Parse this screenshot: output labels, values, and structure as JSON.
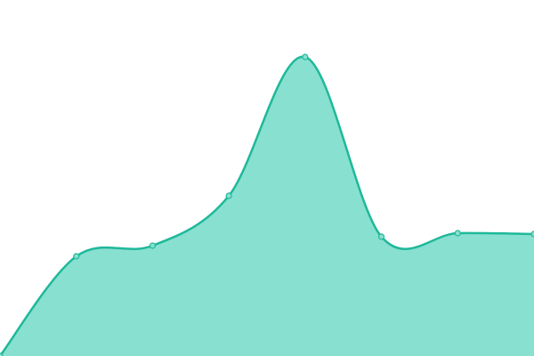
{
  "chart_data": {
    "type": "area",
    "categories": [
      null,
      null,
      null,
      null,
      null,
      null,
      null,
      null
    ],
    "values": [
      0,
      28,
      31,
      45,
      84,
      33.5,
      34.5,
      34.25
    ],
    "color": "#1fb89a",
    "fill": "#88e0d0",
    "ylim": [
      0,
      100
    ]
  }
}
